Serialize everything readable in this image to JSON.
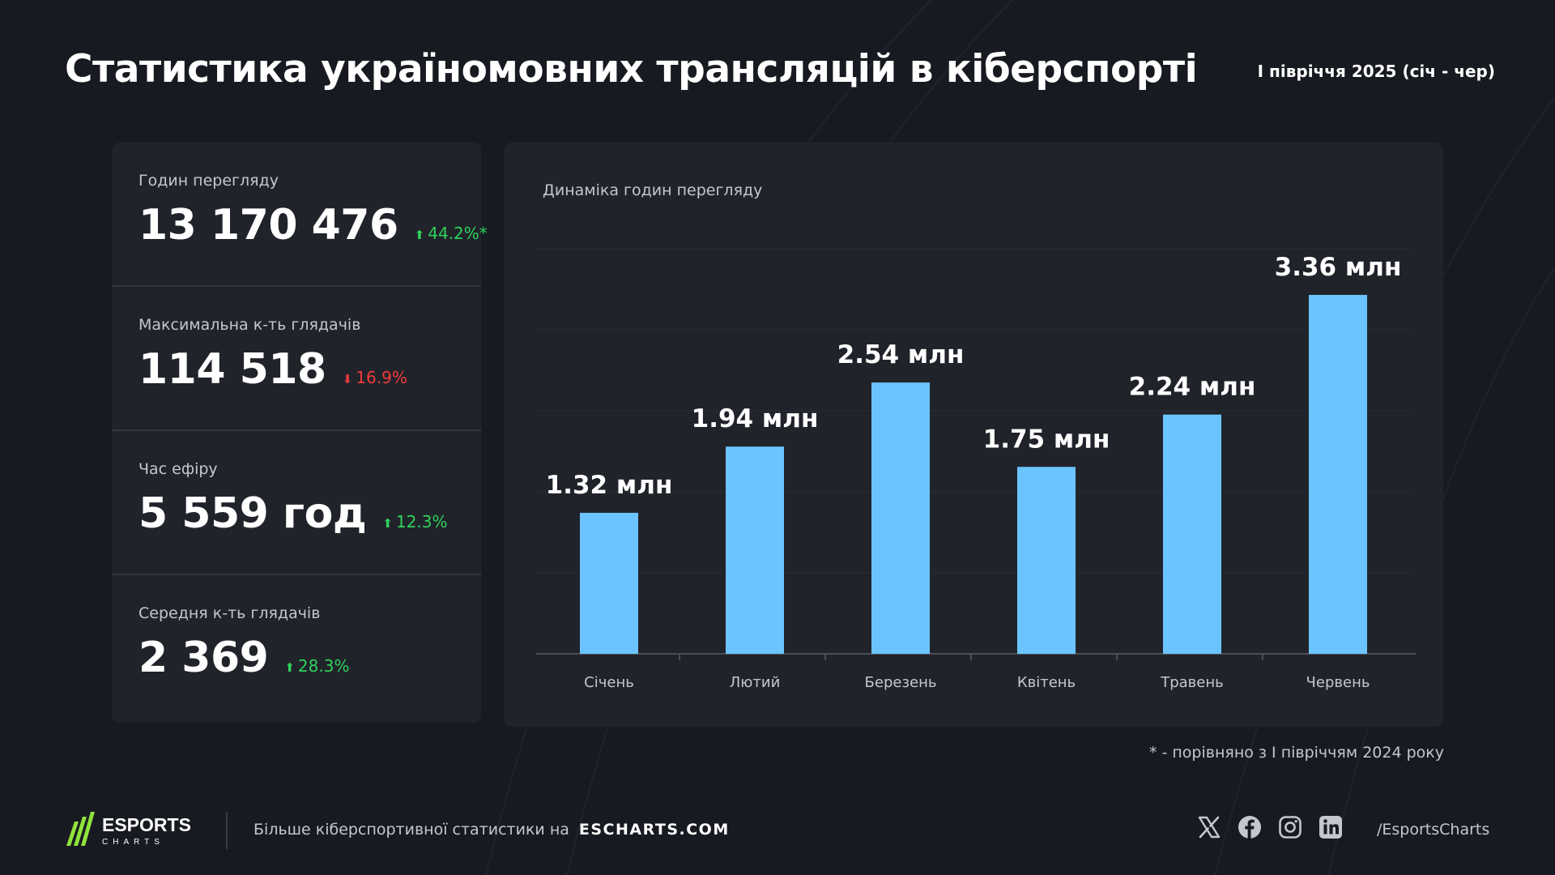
{
  "header": {
    "title": "Статистика україномовних трансляцій в кіберспорті",
    "period": "І півріччя 2025 (січ - чер)"
  },
  "stats": [
    {
      "label": "Годин перегляду",
      "value": "13 170 476",
      "change": "44.2%*",
      "direction": "up"
    },
    {
      "label": "Максимальна к-ть глядачів",
      "value": "114 518",
      "change": "16.9%",
      "direction": "down"
    },
    {
      "label": "Час ефіру",
      "value": "5 559 год",
      "change": "12.3%",
      "direction": "up"
    },
    {
      "label": "Середня к-ть глядачів",
      "value": "2 369",
      "change": "28.3%",
      "direction": "up"
    }
  ],
  "chart_title": "Динаміка годин перегляду",
  "chart_data": {
    "type": "bar",
    "categories": [
      "Січень",
      "Лютий",
      "Березень",
      "Квітень",
      "Травень",
      "Червень"
    ],
    "values": [
      1.32,
      1.94,
      2.54,
      1.75,
      2.24,
      3.36
    ],
    "data_labels": [
      "1.32 млн",
      "1.94 млн",
      "2.54 млн",
      "1.75 млн",
      "2.24 млн",
      "3.36 млн"
    ],
    "unit": "млн",
    "ylim": [
      0,
      3.8
    ],
    "grid": true,
    "bar_color": "#6cc4ff"
  },
  "footnote": "* - порівняно з І півріччям 2024 року",
  "footer": {
    "logo_text": "ESPORTS",
    "logo_subtext": "CHARTS",
    "promo_text": "Більше кіберспортивної статистики на",
    "link_text": "ESCHARTS.COM",
    "handle": "/EsportsCharts"
  },
  "socials": [
    "x-icon",
    "facebook-icon",
    "instagram-icon",
    "linkedin-icon"
  ],
  "colors": {
    "background": "#181a21",
    "panel": "#21232b",
    "accent_blue": "#6cc4ff",
    "positive": "#2fd35a",
    "negative": "#ef3c3c",
    "logo_green": "#8fe33c"
  }
}
